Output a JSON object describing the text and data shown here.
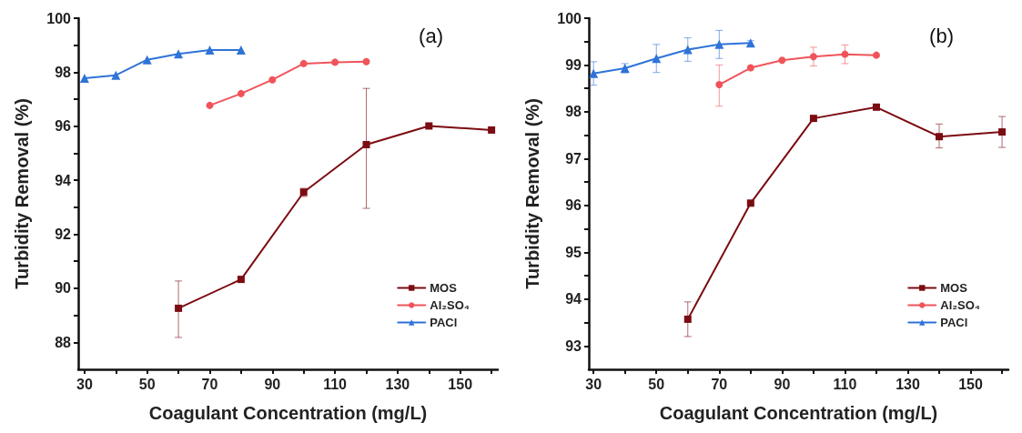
{
  "chart_data": [
    {
      "type": "line",
      "xlabel": "Coagulant Concentration (mg/L)",
      "ylabel": "Turbidity Removal (%)",
      "annotations": [
        "(a)"
      ],
      "xlim": [
        28,
        162
      ],
      "xticks": [
        30,
        {
          "value": 40,
          "label": null
        },
        50,
        {
          "value": 60,
          "label": null
        },
        70,
        {
          "value": 80,
          "label": null
        },
        90,
        {
          "value": 100,
          "label": null
        },
        110,
        {
          "value": 120,
          "label": null
        },
        130,
        {
          "value": 140,
          "label": null
        },
        150,
        {
          "value": 160,
          "label": null
        }
      ],
      "ylim": [
        87,
        100
      ],
      "yticks": [
        88,
        {
          "value": 89,
          "label": null
        },
        90,
        {
          "value": 91,
          "label": null
        },
        92,
        {
          "value": 93,
          "label": null
        },
        94,
        {
          "value": 95,
          "label": null
        },
        96,
        {
          "value": 97,
          "label": null
        },
        98,
        {
          "value": 99,
          "label": null
        },
        100
      ],
      "grid": false,
      "legend": "bottom right",
      "line_style": "solid",
      "series": [
        {
          "name": "MOS",
          "color": "#7b0c12",
          "marker": "square",
          "x": [
            60,
            80,
            100,
            120,
            140,
            160
          ],
          "values": [
            89.26,
            90.33,
            93.56,
            95.32,
            96.01,
            95.86
          ],
          "errors": [
            [
              88.18,
              90.27
            ],
            null,
            [
              93.4,
              93.7
            ],
            [
              92.96,
              97.4
            ],
            null,
            null
          ]
        },
        {
          "name": "Al₂SO₄",
          "color": "#f0545a",
          "marker": "circle",
          "x": [
            70,
            80,
            90,
            100,
            110,
            120
          ],
          "values": [
            96.77,
            97.21,
            97.72,
            98.32,
            98.37,
            98.39
          ]
        },
        {
          "name": "PACl",
          "color": "#2f73d8",
          "marker": "triangle",
          "x": [
            30,
            40,
            50,
            60,
            70,
            80
          ],
          "values": [
            97.78,
            97.89,
            98.46,
            98.68,
            98.82,
            98.82
          ]
        }
      ]
    },
    {
      "type": "line",
      "xlabel": "Coagulant Concentration (mg/L)",
      "ylabel": "Turbidity Removal (%)",
      "annotations": [
        "(b)"
      ],
      "xlim": [
        28.5,
        162
      ],
      "xticks": [
        30,
        {
          "value": 40,
          "label": null
        },
        50,
        {
          "value": 60,
          "label": null
        },
        70,
        {
          "value": 80,
          "label": null
        },
        90,
        {
          "value": 100,
          "label": null
        },
        110,
        {
          "value": 120,
          "label": null
        },
        130,
        {
          "value": 140,
          "label": null
        },
        150,
        {
          "value": 160,
          "label": null
        }
      ],
      "ylim": [
        92.5,
        100
      ],
      "yticks": [
        93,
        {
          "value": 93.5,
          "label": null
        },
        94,
        {
          "value": 94.5,
          "label": null
        },
        95,
        {
          "value": 95.5,
          "label": null
        },
        96,
        {
          "value": 96.5,
          "label": null
        },
        97,
        {
          "value": 97.5,
          "label": null
        },
        98,
        {
          "value": 98.5,
          "label": null
        },
        99,
        {
          "value": 99.5,
          "label": null
        },
        100
      ],
      "grid": false,
      "legend": "bottom right",
      "line_style": "solid",
      "series": [
        {
          "name": "MOS",
          "color": "#7b0c12",
          "marker": "square",
          "x": [
            60,
            80,
            100,
            120,
            140,
            160
          ],
          "values": [
            93.57,
            96.05,
            97.86,
            98.1,
            97.47,
            97.57
          ],
          "errors": [
            [
              93.2,
              93.94
            ],
            null,
            null,
            null,
            [
              97.23,
              97.74
            ],
            [
              97.24,
              97.9
            ]
          ]
        },
        {
          "name": "Al₂SO₄",
          "color": "#f0545a",
          "marker": "circle",
          "x": [
            70,
            80,
            90,
            100,
            110,
            120
          ],
          "values": [
            98.58,
            98.94,
            99.1,
            99.18,
            99.23,
            99.21
          ],
          "errors": [
            [
              98.12,
              99.0
            ],
            null,
            null,
            [
              98.98,
              99.38
            ],
            [
              99.03,
              99.43
            ],
            null
          ]
        },
        {
          "name": "PACl",
          "color": "#2f73d8",
          "marker": "triangle",
          "x": [
            30,
            40,
            50,
            60,
            70,
            80
          ],
          "values": [
            98.82,
            98.93,
            99.14,
            99.33,
            99.44,
            99.47
          ],
          "errors": [
            [
              98.57,
              99.07
            ],
            [
              98.83,
              99.03
            ],
            [
              98.84,
              99.44
            ],
            [
              99.08,
              99.58
            ],
            [
              99.14,
              99.74
            ],
            [
              99.42,
              99.52
            ]
          ]
        }
      ]
    }
  ]
}
